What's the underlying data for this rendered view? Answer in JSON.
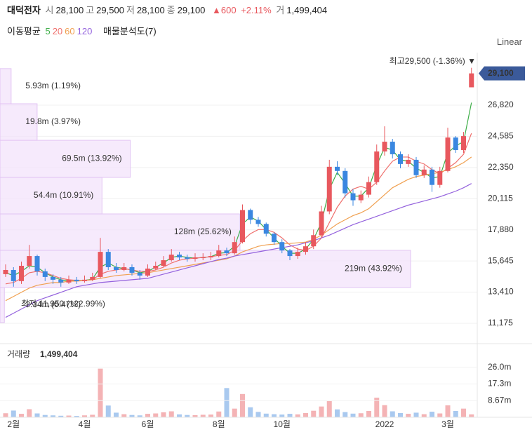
{
  "header": {
    "name": "대덕전자",
    "fields": [
      {
        "label": "시",
        "value": "28,100"
      },
      {
        "label": "고",
        "value": "29,500"
      },
      {
        "label": "저",
        "value": "28,100"
      },
      {
        "label": "종",
        "value": "29,100"
      }
    ],
    "change": "▲600",
    "change_pct": "+2.11%",
    "volume_label": "거",
    "volume": "1,499,404"
  },
  "chart_data": [
    {
      "type": "candlestick",
      "legend_title": "이동평균",
      "indicator": "매물분석도(7)",
      "scale": "Linear",
      "up_color": "#e8585e",
      "down_color": "#3a87e0",
      "categories": [
        null,
        "2월",
        null,
        null,
        null,
        null,
        null,
        null,
        null,
        null,
        "4월",
        null,
        null,
        null,
        null,
        null,
        null,
        null,
        "6월",
        null,
        null,
        null,
        null,
        null,
        null,
        null,
        null,
        "8월",
        null,
        null,
        null,
        null,
        null,
        null,
        null,
        "10월",
        null,
        null,
        null,
        null,
        null,
        null,
        null,
        null,
        null,
        null,
        null,
        null,
        "2022",
        null,
        null,
        null,
        null,
        null,
        null,
        null,
        "3월",
        null,
        null,
        null
      ],
      "open": [
        14700,
        15000,
        14200,
        15300,
        16000,
        14900,
        14500,
        14300,
        14100,
        14300,
        14200,
        14300,
        14500,
        16300,
        15200,
        15000,
        15200,
        14800,
        14600,
        15100,
        15300,
        15700,
        16100,
        15900,
        15800,
        15900,
        15900,
        16000,
        16400,
        16200,
        17000,
        19300,
        18600,
        18300,
        17600,
        17000,
        16400,
        16000,
        16300,
        16700,
        17500,
        19200,
        22400,
        22100,
        20500,
        20000,
        20400,
        21300,
        23500,
        24200,
        23300,
        22600,
        22900,
        21800,
        22200,
        21100,
        22100,
        24500,
        23600,
        28100
      ],
      "high": [
        15400,
        15200,
        15600,
        16800,
        16100,
        15100,
        14700,
        14500,
        14600,
        14500,
        14600,
        14800,
        17300,
        16500,
        15500,
        15500,
        15400,
        15000,
        15400,
        15600,
        16000,
        16500,
        16300,
        16100,
        16200,
        16200,
        16300,
        16800,
        16600,
        17400,
        19700,
        19400,
        18800,
        18400,
        17700,
        17200,
        16500,
        16600,
        17000,
        17900,
        19600,
        22900,
        22800,
        22300,
        20800,
        20700,
        21700,
        24000,
        25300,
        24400,
        23500,
        23300,
        23100,
        22500,
        22400,
        22400,
        25200,
        24600,
        24900,
        29500
      ],
      "low": [
        14500,
        13800,
        14000,
        15100,
        14600,
        14200,
        14000,
        13800,
        14000,
        14000,
        14100,
        14200,
        14400,
        15000,
        14800,
        14900,
        14600,
        14300,
        14500,
        15000,
        15200,
        15600,
        15700,
        15600,
        15600,
        15700,
        15700,
        15900,
        16000,
        16100,
        16900,
        18300,
        18100,
        17400,
        16800,
        16200,
        15700,
        15800,
        16100,
        16500,
        17300,
        19000,
        21800,
        20200,
        19600,
        19800,
        20200,
        21100,
        23200,
        23000,
        22300,
        22400,
        21600,
        21600,
        20600,
        20900,
        22000,
        23400,
        23400,
        28100
      ],
      "close": [
        15000,
        14200,
        15300,
        16000,
        14900,
        14500,
        14300,
        14100,
        14300,
        14200,
        14300,
        14500,
        16300,
        15200,
        15000,
        15200,
        14800,
        14600,
        15100,
        15300,
        15700,
        16100,
        15900,
        15800,
        15900,
        15900,
        16000,
        16400,
        16200,
        17000,
        19300,
        18600,
        18300,
        17600,
        17000,
        16400,
        16000,
        16300,
        16700,
        17500,
        19200,
        22400,
        22100,
        20500,
        20000,
        20400,
        21300,
        23500,
        24200,
        23300,
        22600,
        22900,
        21800,
        22200,
        21100,
        22100,
        24500,
        23600,
        24600,
        29100
      ],
      "series": [
        {
          "name": "5",
          "color": "#3fae49",
          "values": [
            14800,
            14600,
            14900,
            15300,
            15200,
            14800,
            14500,
            14300,
            14200,
            14250,
            14250,
            14350,
            15200,
            15500,
            15200,
            15100,
            15000,
            14800,
            14900,
            15200,
            15500,
            15900,
            16000,
            15900,
            15850,
            15900,
            15950,
            16200,
            16250,
            16700,
            18300,
            18800,
            18500,
            17900,
            17300,
            16700,
            16200,
            16200,
            16500,
            17200,
            18400,
            20800,
            22000,
            21200,
            20300,
            20300,
            20900,
            22500,
            23800,
            23600,
            22900,
            22800,
            22300,
            22000,
            21600,
            21700,
            23400,
            23900,
            24200,
            27000
          ]
        },
        {
          "name": "20",
          "color": "#ef6f6c",
          "values": [
            14000,
            14100,
            14400,
            14800,
            14900,
            14800,
            14600,
            14400,
            14300,
            14250,
            14250,
            14300,
            14700,
            14900,
            15000,
            15100,
            15000,
            14900,
            14900,
            15000,
            15200,
            15500,
            15700,
            15800,
            15850,
            15900,
            15950,
            16050,
            16100,
            16400,
            17100,
            17600,
            17900,
            17900,
            17700,
            17300,
            16800,
            16500,
            16400,
            16700,
            17300,
            18400,
            19500,
            20300,
            20800,
            21000,
            20800,
            21300,
            22100,
            22800,
            23100,
            23100,
            22800,
            22600,
            22200,
            21900,
            22300,
            22700,
            23300,
            24800
          ]
        },
        {
          "name": "60",
          "color": "#f0a050",
          "values": [
            12800,
            13100,
            13400,
            13700,
            13900,
            14000,
            14100,
            14100,
            14200,
            14200,
            14250,
            14300,
            14400,
            14500,
            14600,
            14650,
            14700,
            14750,
            14800,
            14900,
            15000,
            15100,
            15200,
            15300,
            15400,
            15500,
            15600,
            15700,
            15800,
            16000,
            16300,
            16500,
            16700,
            16800,
            16850,
            16900,
            16900,
            16950,
            17000,
            17200,
            17500,
            17900,
            18300,
            18600,
            18900,
            19100,
            19400,
            19900,
            20400,
            20900,
            21200,
            21500,
            21700,
            21800,
            21900,
            22000,
            22200,
            22400,
            22700,
            23100
          ]
        },
        {
          "name": "120",
          "color": "#9462dd",
          "values": [
            11600,
            11900,
            12200,
            12500,
            12800,
            13000,
            13200,
            13400,
            13600,
            13800,
            13900,
            14000,
            14100,
            14150,
            14200,
            14250,
            14300,
            14350,
            14400,
            14550,
            14700,
            14850,
            15000,
            15150,
            15300,
            15450,
            15600,
            15750,
            15850,
            16000,
            16100,
            16200,
            16300,
            16400,
            16500,
            16600,
            16700,
            16800,
            16950,
            17100,
            17300,
            17500,
            17750,
            18000,
            18250,
            18450,
            18650,
            18850,
            19050,
            19250,
            19450,
            19650,
            19800,
            19950,
            20100,
            20250,
            20450,
            20650,
            20900,
            21200
          ]
        }
      ],
      "ylim": [
        10220,
        30590
      ],
      "yticks": [
        {
          "value": 11175,
          "label": "11,175"
        },
        {
          "value": 13410,
          "label": "13,410"
        },
        {
          "value": 15645,
          "label": "15,645"
        },
        {
          "value": 17880,
          "label": "17,880"
        },
        {
          "value": 20115,
          "label": "20,115"
        },
        {
          "value": 22350,
          "label": "22,350"
        },
        {
          "value": 24585,
          "label": "24,585"
        },
        {
          "value": 26820,
          "label": "26,820"
        }
      ],
      "last_price": {
        "value": 29100,
        "label": "29,100"
      },
      "profile": {
        "bins": [
          11230,
          13740,
          16410,
          19020,
          21640,
          24300,
          26920,
          29440
        ],
        "values": [
          2.34,
          219,
          128,
          54.4,
          69.5,
          19.8,
          5.93
        ],
        "value_labels": [
          "2.34m (0.47%)",
          "219m (43.92%)",
          "128m (25.62%)",
          "54.4m (10.91%)",
          "69.5m (13.92%)",
          "19.8m (3.97%)",
          "5.93m (1.19%)"
        ],
        "color": "#f3e3fb",
        "border": "#e2c4f3"
      },
      "annotations": {
        "high": "최고29,500 (-1.36%) ▼",
        "low": "최저 11,950 (122.99%)"
      }
    },
    {
      "type": "bar",
      "title": "거래량",
      "last": "1,499,404",
      "values": [
        2.1,
        3.5,
        1.8,
        4.2,
        2.0,
        1.2,
        1.0,
        0.8,
        0.9,
        0.7,
        1.0,
        1.3,
        25.3,
        6.1,
        2.4,
        1.6,
        1.2,
        1.0,
        1.8,
        2.0,
        2.6,
        3.1,
        1.5,
        1.2,
        1.1,
        1.3,
        1.4,
        3.0,
        15.2,
        4.5,
        12.1,
        5.2,
        2.8,
        1.9,
        1.6,
        1.4,
        1.8,
        1.5,
        2.2,
        3.4,
        5.6,
        8.4,
        4.1,
        2.7,
        1.9,
        2.1,
        3.3,
        10.2,
        6.3,
        3.1,
        2.2,
        1.8,
        2.4,
        1.6,
        2.9,
        2.0,
        6.2,
        3.3,
        4.5,
        1.499404
      ],
      "ylim": [
        0,
        38.3
      ],
      "yticks": [
        {
          "value": 8.67,
          "label": "8.67m"
        },
        {
          "value": 17.3,
          "label": "17.3m"
        },
        {
          "value": 26,
          "label": "26.0m"
        }
      ]
    }
  ]
}
